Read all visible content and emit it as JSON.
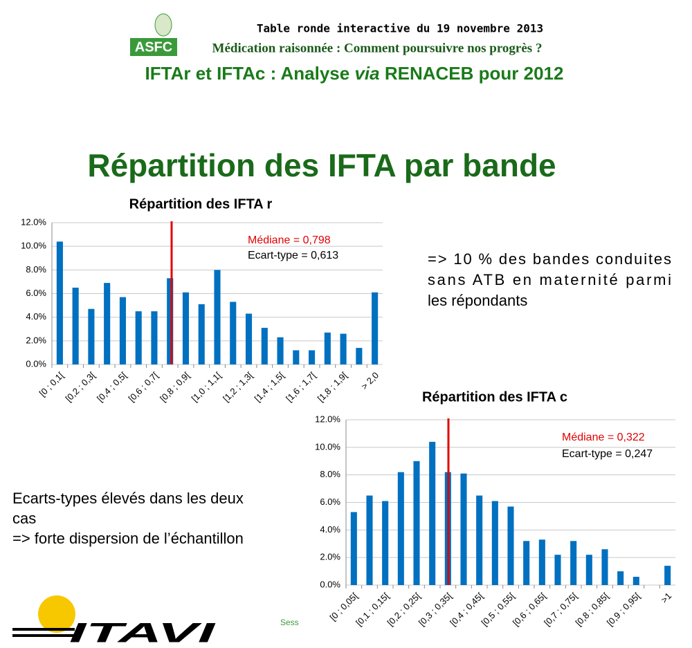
{
  "header": {
    "logo": "ASFC",
    "event": "Table ronde interactive du 19 novembre 2013",
    "subtitle": "Médication raisonnée : Comment poursuivre nos progrès ?",
    "title_parts": [
      "IFTAr et IFTAc : Analyse ",
      "via",
      " RENACEB pour 2012"
    ]
  },
  "slide_title": "Répartition des IFTA par bande",
  "note_right": [
    "=> 10 % des bandes conduites",
    "sans ATB en maternité parmi",
    "les répondants"
  ],
  "note_left": [
    "Ecarts-types élevés dans les deux",
    "cas",
    "=> forte dispersion de l’échantillon"
  ],
  "footer": {
    "logo": "ITAVI",
    "tag": "Sess"
  },
  "chart_data": [
    {
      "type": "bar",
      "title": "Répartition des IFTA r",
      "categories": [
        "[0 ; 0,1[",
        null,
        "[0,2 ; 0,3[",
        null,
        "[0,4 ; 0,5[",
        null,
        "[0,6 ; 0,7[",
        null,
        "[0,8 ; 0,9[",
        null,
        "[1,0 ; 1,1[",
        null,
        "[1,2 ; 1,3[",
        null,
        "[1,4 ; 1,5[",
        null,
        "[1,6 ; 1,7[",
        null,
        "[1,8 ; 1,9[",
        null,
        "> 2,0"
      ],
      "values": [
        10.4,
        6.5,
        4.7,
        6.9,
        5.7,
        4.5,
        4.5,
        7.3,
        6.1,
        5.1,
        8.0,
        5.3,
        4.3,
        3.1,
        2.3,
        1.2,
        1.2,
        2.7,
        2.6,
        1.4,
        6.1
      ],
      "color": "#0070c0",
      "ylim": [
        0,
        12
      ],
      "yticks": [
        {
          "value": 0,
          "label": "0.0%"
        },
        {
          "value": 2,
          "label": "2.0%"
        },
        {
          "value": 4,
          "label": "4.0%"
        },
        {
          "value": 6,
          "label": "6.0%"
        },
        {
          "value": 8,
          "label": "8.0%"
        },
        {
          "value": 10,
          "label": "10.0%"
        },
        {
          "value": 12,
          "label": "12.0%"
        }
      ],
      "grid": true,
      "annotations": [
        "Médiane = 0,798",
        "Ecart-type = 0,613"
      ]
    },
    {
      "type": "bar",
      "title": "Répartition des IFTA c",
      "categories": [
        "[0 ; 0,05[",
        null,
        "[0,1 ; 0,15[",
        null,
        "[0,2 ; 0,25[",
        null,
        "[0,3 ; 0,35[",
        null,
        "[0,4 ; 0,45[",
        null,
        "[0,5 ; 0,55[",
        null,
        "[0,6 ; 0,65[",
        null,
        "[0,7 ; 0,75[",
        null,
        "[0,8 ; 0,85[",
        null,
        "[0,9 ; 0,95[",
        null,
        ">1"
      ],
      "values": [
        5.3,
        6.5,
        6.1,
        8.2,
        9.0,
        10.4,
        8.2,
        8.1,
        6.5,
        6.1,
        5.7,
        3.2,
        3.3,
        2.2,
        3.2,
        2.2,
        2.6,
        1.0,
        0.6,
        0,
        1.4
      ],
      "color": "#0070c0",
      "ylim": [
        0,
        12
      ],
      "yticks": [
        {
          "value": 0,
          "label": "0.0%"
        },
        {
          "value": 2,
          "label": "2.0%"
        },
        {
          "value": 4,
          "label": "4.0%"
        },
        {
          "value": 6,
          "label": "6.0%"
        },
        {
          "value": 8,
          "label": "8.0%"
        },
        {
          "value": 10,
          "label": "10.0%"
        },
        {
          "value": 12,
          "label": "12.0%"
        }
      ],
      "grid": true,
      "annotations": [
        "Médiane = 0,322",
        "Ecart-type = 0,247"
      ]
    }
  ]
}
